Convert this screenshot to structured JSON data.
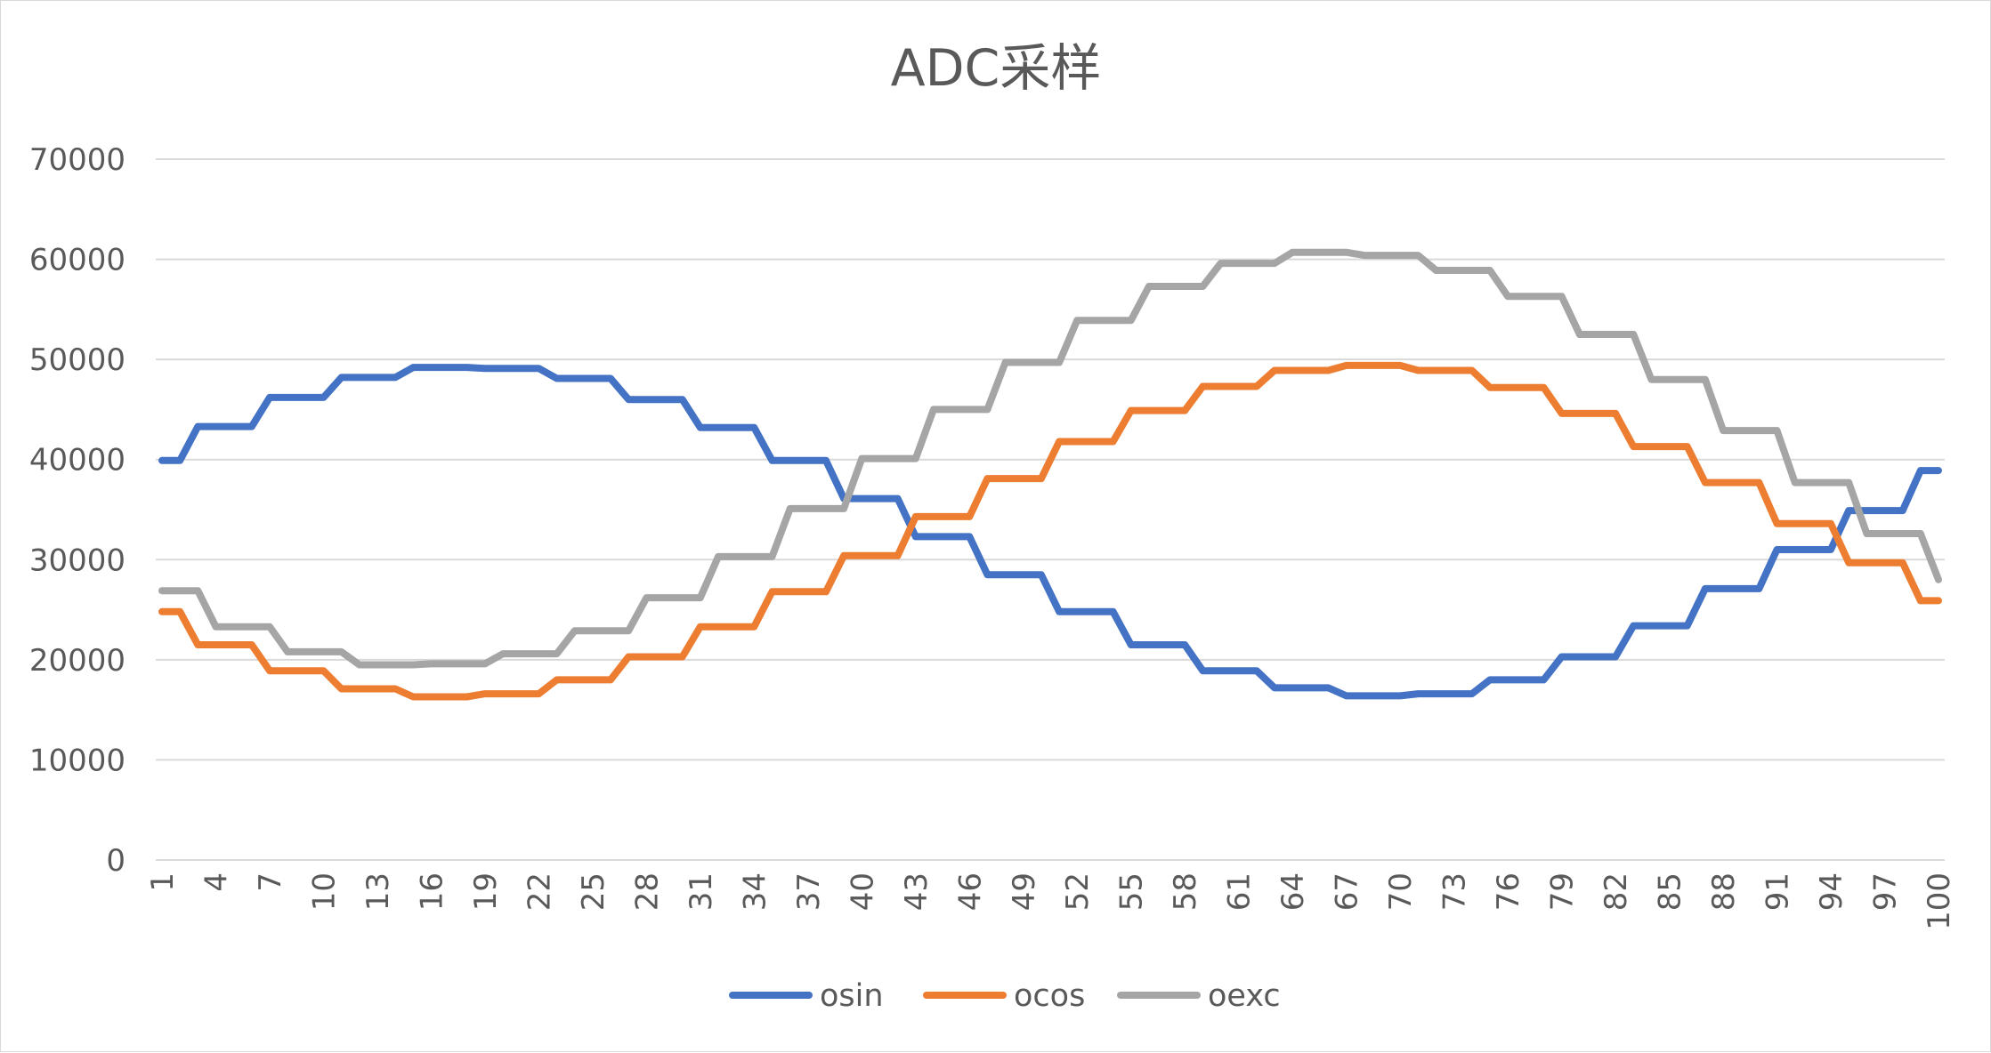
{
  "chart_data": {
    "type": "line",
    "title": "ADC采样",
    "xlabel": "",
    "ylabel": "",
    "ylim": [
      0,
      70000
    ],
    "yticks": [
      0,
      10000,
      20000,
      30000,
      40000,
      50000,
      60000,
      70000
    ],
    "xticks": [
      1,
      4,
      7,
      10,
      13,
      16,
      19,
      22,
      25,
      28,
      31,
      34,
      37,
      40,
      43,
      46,
      49,
      52,
      55,
      58,
      61,
      64,
      67,
      70,
      73,
      76,
      79,
      82,
      85,
      88,
      91,
      94,
      97,
      100
    ],
    "x_range": [
      1,
      100
    ],
    "grid": "horizontal",
    "legend_position": "bottom",
    "series": [
      {
        "name": "osin",
        "color": "#4472C4",
        "points": [
          [
            1,
            39900
          ],
          [
            2,
            39900
          ],
          [
            3,
            43300
          ],
          [
            6,
            43300
          ],
          [
            7,
            46200
          ],
          [
            10,
            46200
          ],
          [
            11,
            48200
          ],
          [
            14,
            48200
          ],
          [
            15,
            49200
          ],
          [
            18,
            49200
          ],
          [
            19,
            49100
          ],
          [
            22,
            49100
          ],
          [
            23,
            48100
          ],
          [
            26,
            48100
          ],
          [
            27,
            46000
          ],
          [
            30,
            46000
          ],
          [
            31,
            43200
          ],
          [
            34,
            43200
          ],
          [
            35,
            39900
          ],
          [
            38,
            39900
          ],
          [
            39,
            36100
          ],
          [
            42,
            36100
          ],
          [
            43,
            32300
          ],
          [
            46,
            32300
          ],
          [
            47,
            28500
          ],
          [
            50,
            28500
          ],
          [
            51,
            24800
          ],
          [
            54,
            24800
          ],
          [
            55,
            21500
          ],
          [
            58,
            21500
          ],
          [
            59,
            18900
          ],
          [
            62,
            18900
          ],
          [
            63,
            17200
          ],
          [
            66,
            17200
          ],
          [
            67,
            16400
          ],
          [
            70,
            16400
          ],
          [
            71,
            16600
          ],
          [
            74,
            16600
          ],
          [
            75,
            18000
          ],
          [
            78,
            18000
          ],
          [
            79,
            20300
          ],
          [
            82,
            20300
          ],
          [
            83,
            23400
          ],
          [
            86,
            23400
          ],
          [
            87,
            27100
          ],
          [
            90,
            27100
          ],
          [
            91,
            31000
          ],
          [
            94,
            31000
          ],
          [
            95,
            34900
          ],
          [
            98,
            34900
          ],
          [
            99,
            38900
          ],
          [
            100,
            38900
          ]
        ]
      },
      {
        "name": "ocos",
        "color": "#ED7D31",
        "points": [
          [
            1,
            24800
          ],
          [
            2,
            24800
          ],
          [
            3,
            21500
          ],
          [
            6,
            21500
          ],
          [
            7,
            18900
          ],
          [
            10,
            18900
          ],
          [
            11,
            17100
          ],
          [
            14,
            17100
          ],
          [
            15,
            16300
          ],
          [
            18,
            16300
          ],
          [
            19,
            16600
          ],
          [
            22,
            16600
          ],
          [
            23,
            18000
          ],
          [
            26,
            18000
          ],
          [
            27,
            20300
          ],
          [
            30,
            20300
          ],
          [
            31,
            23300
          ],
          [
            34,
            23300
          ],
          [
            35,
            26800
          ],
          [
            38,
            26800
          ],
          [
            39,
            30400
          ],
          [
            42,
            30400
          ],
          [
            43,
            34300
          ],
          [
            46,
            34300
          ],
          [
            47,
            38100
          ],
          [
            50,
            38100
          ],
          [
            51,
            41800
          ],
          [
            54,
            41800
          ],
          [
            55,
            44900
          ],
          [
            58,
            44900
          ],
          [
            59,
            47300
          ],
          [
            62,
            47300
          ],
          [
            63,
            48900
          ],
          [
            66,
            48900
          ],
          [
            67,
            49400
          ],
          [
            70,
            49400
          ],
          [
            71,
            48900
          ],
          [
            74,
            48900
          ],
          [
            75,
            47200
          ],
          [
            78,
            47200
          ],
          [
            79,
            44600
          ],
          [
            82,
            44600
          ],
          [
            83,
            41300
          ],
          [
            86,
            41300
          ],
          [
            87,
            37700
          ],
          [
            90,
            37700
          ],
          [
            91,
            33600
          ],
          [
            94,
            33600
          ],
          [
            95,
            29700
          ],
          [
            98,
            29700
          ],
          [
            99,
            25900
          ],
          [
            100,
            25900
          ]
        ]
      },
      {
        "name": "oexc",
        "color": "#A5A5A5",
        "points": [
          [
            1,
            26900
          ],
          [
            3,
            26900
          ],
          [
            4,
            23300
          ],
          [
            7,
            23300
          ],
          [
            8,
            20800
          ],
          [
            11,
            20800
          ],
          [
            12,
            19500
          ],
          [
            15,
            19500
          ],
          [
            16,
            19600
          ],
          [
            19,
            19600
          ],
          [
            20,
            20600
          ],
          [
            23,
            20600
          ],
          [
            24,
            22900
          ],
          [
            27,
            22900
          ],
          [
            28,
            26200
          ],
          [
            31,
            26200
          ],
          [
            32,
            30300
          ],
          [
            35,
            30300
          ],
          [
            36,
            35100
          ],
          [
            39,
            35100
          ],
          [
            40,
            40100
          ],
          [
            43,
            40100
          ],
          [
            44,
            45000
          ],
          [
            47,
            45000
          ],
          [
            48,
            49700
          ],
          [
            51,
            49700
          ],
          [
            52,
            53900
          ],
          [
            55,
            53900
          ],
          [
            56,
            57300
          ],
          [
            59,
            57300
          ],
          [
            60,
            59600
          ],
          [
            63,
            59600
          ],
          [
            64,
            60700
          ],
          [
            67,
            60700
          ],
          [
            68,
            60400
          ],
          [
            71,
            60400
          ],
          [
            72,
            58900
          ],
          [
            75,
            58900
          ],
          [
            76,
            56300
          ],
          [
            79,
            56300
          ],
          [
            80,
            52500
          ],
          [
            83,
            52500
          ],
          [
            84,
            48000
          ],
          [
            87,
            48000
          ],
          [
            88,
            42900
          ],
          [
            91,
            42900
          ],
          [
            92,
            37700
          ],
          [
            95,
            37700
          ],
          [
            96,
            32600
          ],
          [
            99,
            32600
          ],
          [
            100,
            28000
          ]
        ]
      }
    ]
  }
}
